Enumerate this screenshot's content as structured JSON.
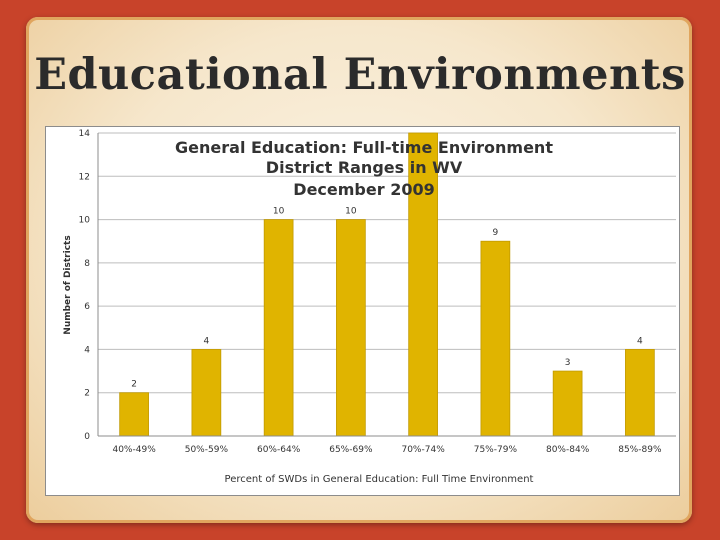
{
  "slide": {
    "title": "Educational Environments"
  },
  "colors": {
    "background": "#c8432a",
    "bar": "#e0b400",
    "bar_edge": "#c29a00",
    "plot_bg": "#ffffff",
    "grid": "#bdbdbd"
  },
  "chart_data": {
    "type": "bar",
    "title": "General Education: Full-time Environment District Ranges in WV December 2009",
    "title_lines": [
      "General Education: Full-time Environment",
      "District Ranges in WV",
      "December 2009"
    ],
    "xlabel": "Percent of SWDs in General Education: Full Time Environment",
    "ylabel": "Number of Districts",
    "categories": [
      "40%-49%",
      "50%-59%",
      "60%-64%",
      "65%-69%",
      "70%-74%",
      "75%-79%",
      "80%-84%",
      "85%-89%"
    ],
    "values": [
      2,
      4,
      10,
      10,
      14,
      9,
      3,
      4
    ],
    "ylim": [
      0,
      14
    ],
    "yticks": [
      0,
      2,
      4,
      6,
      8,
      10,
      12,
      14
    ],
    "grid": true,
    "data_labels": true
  }
}
